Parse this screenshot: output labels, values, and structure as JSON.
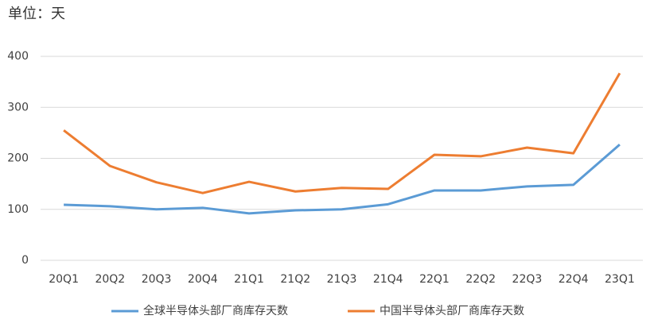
{
  "chart_data": {
    "type": "line",
    "unit_label": "单位：天",
    "categories": [
      "20Q1",
      "20Q2",
      "20Q3",
      "20Q4",
      "21Q1",
      "21Q2",
      "21Q3",
      "21Q4",
      "22Q1",
      "22Q2",
      "22Q3",
      "22Q4",
      "23Q1"
    ],
    "series": [
      {
        "name": "全球半导体头部厂商库存天数",
        "color": "#5b9bd5",
        "values": [
          109,
          106,
          100,
          103,
          92,
          98,
          100,
          110,
          137,
          137,
          145,
          148,
          227
        ]
      },
      {
        "name": "中国半导体头部厂商库存天数",
        "color": "#ed7d31",
        "values": [
          255,
          185,
          153,
          132,
          154,
          135,
          142,
          140,
          207,
          204,
          221,
          210,
          367
        ]
      }
    ],
    "ylim": [
      0,
      400
    ],
    "yticks": [
      0,
      100,
      200,
      300,
      400
    ],
    "grid": true
  }
}
